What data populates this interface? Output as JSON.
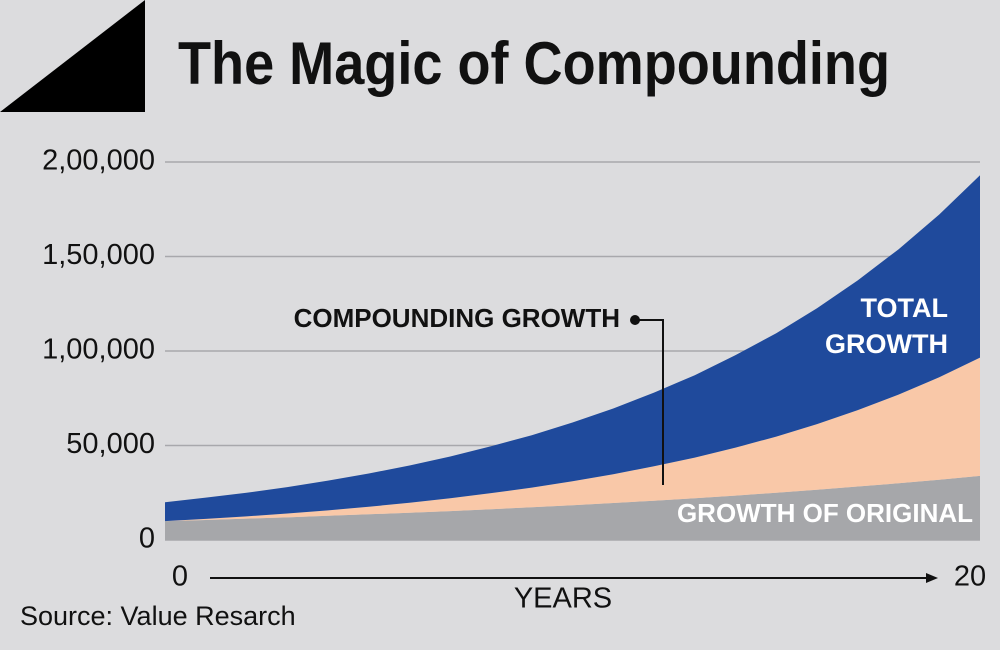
{
  "chart_data": {
    "type": "stacked_area",
    "title": "The Magic of Compounding",
    "source": "Source: Value Resarch",
    "x_label": "YEARS",
    "x": [
      0,
      1,
      2,
      3,
      4,
      5,
      6,
      7,
      8,
      9,
      10,
      11,
      12,
      13,
      14,
      15,
      16,
      17,
      18,
      19,
      20
    ],
    "xlim": [
      0,
      20
    ],
    "xticks": [
      0,
      20
    ],
    "ylim": [
      0,
      200000
    ],
    "yticks": [
      0,
      {
        "value": 50000,
        "label": "50,000"
      },
      {
        "value": 100000,
        "label": "1,00,000"
      },
      {
        "value": 150000,
        "label": "1,50,000"
      },
      {
        "value": 200000,
        "label": "2,00,000"
      }
    ],
    "grid": true,
    "series": [
      {
        "name": "GROWTH OF ORIGINAL",
        "color": "#a6a7aa",
        "values": [
          10000,
          10600,
          11300,
          12000,
          12800,
          13600,
          14400,
          15300,
          16300,
          17300,
          18400,
          19600,
          20800,
          22100,
          23500,
          25000,
          26600,
          28300,
          30000,
          31900,
          33900
        ]
      },
      {
        "name": "COMPOUNDING GROWTH",
        "color": "#f9c8a8",
        "values": [
          0,
          600,
          1200,
          2000,
          2900,
          4000,
          5300,
          6800,
          8500,
          10400,
          12700,
          15200,
          18200,
          21500,
          25400,
          29700,
          34700,
          40400,
          46900,
          54200,
          62600
        ]
      },
      {
        "name": "TOTAL GROWTH",
        "color": "#1f4a9c",
        "values": [
          10000,
          11200,
          12500,
          14000,
          15700,
          17600,
          19700,
          22100,
          24800,
          27700,
          31100,
          34800,
          39000,
          43600,
          48900,
          54700,
          61300,
          68700,
          76900,
          86100,
          96500
        ]
      }
    ]
  }
}
